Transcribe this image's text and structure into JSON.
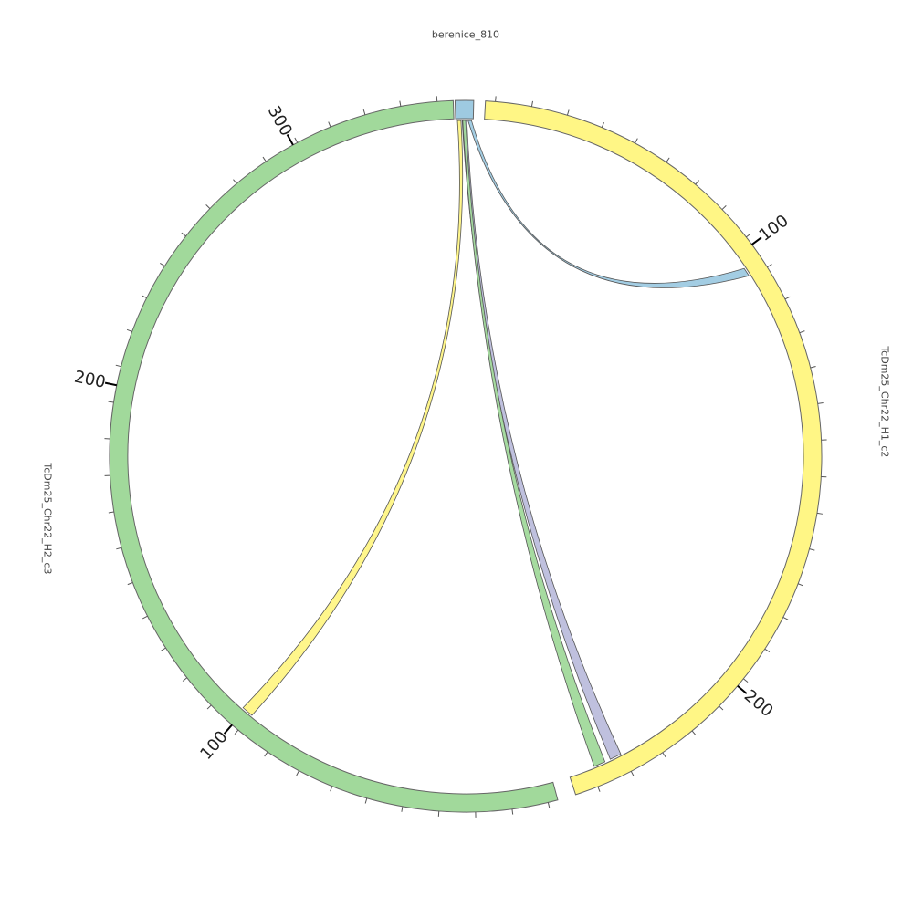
{
  "chart_data": {
    "type": "chord",
    "segments": [
      {
        "id": "berenice",
        "label": "berenice_810",
        "color": "#9ecae1",
        "major_ticks": []
      },
      {
        "id": "h1c2",
        "label": "TcDm25_Chr22_H1_c2",
        "color": "#fff685",
        "major_ticks": [
          "100",
          "200"
        ]
      },
      {
        "id": "h2c3",
        "label": "TcDm25_Chr22_H2_c3",
        "color": "#a1d99b",
        "major_ticks": [
          "100",
          "200",
          "300"
        ]
      }
    ],
    "links": [
      {
        "from": "berenice",
        "to": "h1c2",
        "color": "#9ecae1"
      },
      {
        "from": "berenice",
        "to": "h1c2",
        "color": "#bcbddc"
      },
      {
        "from": "berenice",
        "to": "h1c2",
        "color": "#a1d99b"
      },
      {
        "from": "berenice",
        "to": "h2c3",
        "color": "#fff685"
      }
    ]
  }
}
